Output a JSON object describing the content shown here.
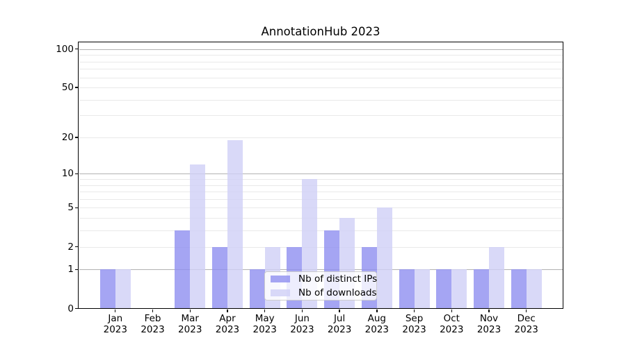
{
  "chart_data": {
    "type": "bar",
    "title": "AnnotationHub 2023",
    "categories": [
      "Jan 2023",
      "Feb 2023",
      "Mar 2023",
      "Apr 2023",
      "May 2023",
      "Jun 2023",
      "Jul 2023",
      "Aug 2023",
      "Sep 2023",
      "Oct 2023",
      "Nov 2023",
      "Dec 2023"
    ],
    "series": [
      {
        "name": "Nb of distinct IPs",
        "color": "#a5a5f3",
        "values": [
          1,
          0,
          3,
          2,
          1,
          2,
          3,
          2,
          1,
          1,
          1,
          1
        ]
      },
      {
        "name": "Nb of downloads",
        "color": "#d9d9f8",
        "values": [
          1,
          0,
          12,
          19,
          2,
          9,
          4,
          5,
          1,
          1,
          2,
          1
        ]
      }
    ],
    "y_axis": {
      "scale": "log1p",
      "tick_values": [
        0,
        1,
        2,
        5,
        10,
        20,
        50,
        100
      ],
      "tick_labels": [
        "0",
        "1",
        "2",
        "5",
        "10",
        "20",
        "50",
        "100"
      ],
      "major_gridlines": [
        1,
        10,
        100
      ],
      "minor_gridlines": [
        2,
        3,
        4,
        5,
        6,
        7,
        8,
        9,
        20,
        30,
        40,
        50,
        60,
        70,
        80,
        90
      ],
      "ylim": [
        0,
        110
      ]
    },
    "grid": {
      "major_color": "#b2b2b2",
      "minor_color": "#e9e9e9",
      "visible": true
    },
    "legend_position": "lower center inside"
  }
}
